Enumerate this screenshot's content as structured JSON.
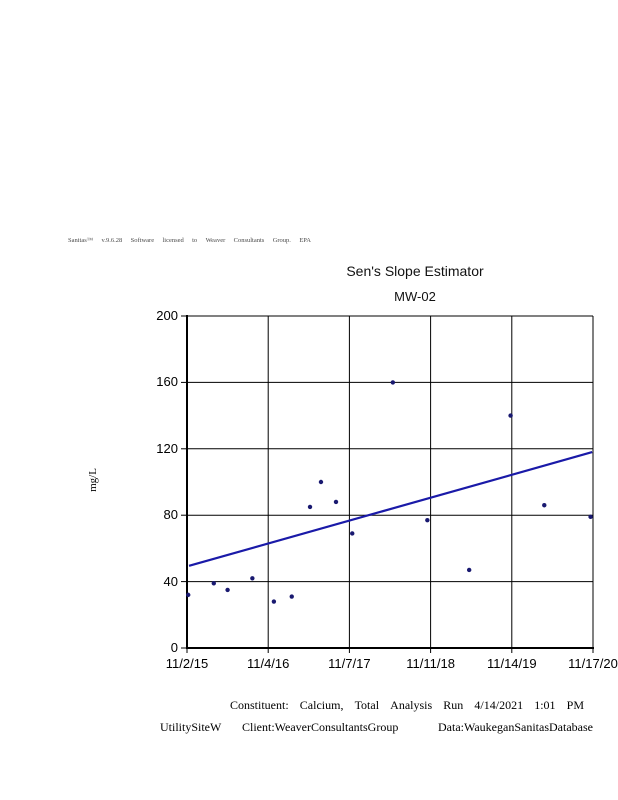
{
  "app": {
    "credit_words": [
      "Sanitas™",
      "v.9.6.28",
      "Software",
      "licensed",
      "to",
      "Weaver",
      "Consultants",
      "Group.",
      "EPA"
    ]
  },
  "header": {
    "title": "Sen's Slope Estimator",
    "subtitle": "MW-02"
  },
  "footer": {
    "line1_words": [
      "Constituent:",
      "Calcium,",
      "Total",
      "Analysis",
      "Run",
      "4/14/2021",
      "1:01",
      "PM"
    ],
    "line2_site": "UtilitySiteW",
    "line2_client": "Client:WeaverConsultantsGroup",
    "line2_data": "Data:WaukeganSanitasDatabase"
  },
  "colors": {
    "background": "#ffffff",
    "grid": "#000000",
    "axis": "#000000",
    "trend_line": "#1a1aa8",
    "point": "#191970",
    "text": "#000000"
  },
  "chart_data": {
    "type": "scatter",
    "title": "Sen's Slope Estimator",
    "subtitle": "MW-02",
    "xlabel": "",
    "ylabel": "mg/L",
    "ylim": [
      0,
      200
    ],
    "yticks": [
      0,
      40,
      80,
      120,
      160,
      200
    ],
    "xtick_labels": [
      "11/2/15",
      "11/4/16",
      "11/7/17",
      "11/11/18",
      "11/14/19",
      "11/17/20"
    ],
    "grid": true,
    "legend": "none",
    "points": [
      {
        "x_frac": 0.003,
        "approx_date": "11/2015",
        "mg_l": 32
      },
      {
        "x_frac": 0.066,
        "approx_date": "3/2016",
        "mg_l": 39
      },
      {
        "x_frac": 0.1,
        "approx_date": "5/2016",
        "mg_l": 35
      },
      {
        "x_frac": 0.161,
        "approx_date": "8/2016",
        "mg_l": 42
      },
      {
        "x_frac": 0.214,
        "approx_date": "11/2016",
        "mg_l": 28
      },
      {
        "x_frac": 0.258,
        "approx_date": "2/2017",
        "mg_l": 31
      },
      {
        "x_frac": 0.303,
        "approx_date": "5/2017",
        "mg_l": 85
      },
      {
        "x_frac": 0.33,
        "approx_date": "7/2017",
        "mg_l": 100
      },
      {
        "x_frac": 0.367,
        "approx_date": "9/2017",
        "mg_l": 88
      },
      {
        "x_frac": 0.407,
        "approx_date": "11/2017",
        "mg_l": 69
      },
      {
        "x_frac": 0.507,
        "approx_date": "5/2018",
        "mg_l": 160
      },
      {
        "x_frac": 0.592,
        "approx_date": "10/2018",
        "mg_l": 77
      },
      {
        "x_frac": 0.695,
        "approx_date": "4/2019",
        "mg_l": 47
      },
      {
        "x_frac": 0.797,
        "approx_date": "10/2019",
        "mg_l": 140
      },
      {
        "x_frac": 0.88,
        "approx_date": "3/2020",
        "mg_l": 86
      },
      {
        "x_frac": 0.994,
        "approx_date": "10/2020",
        "mg_l": 79
      }
    ],
    "trend_line": {
      "name": "Sen's slope estimate line",
      "x1_frac": 0.005,
      "y1": 49.5,
      "x2_frac": 0.998,
      "y2": 118
    }
  }
}
